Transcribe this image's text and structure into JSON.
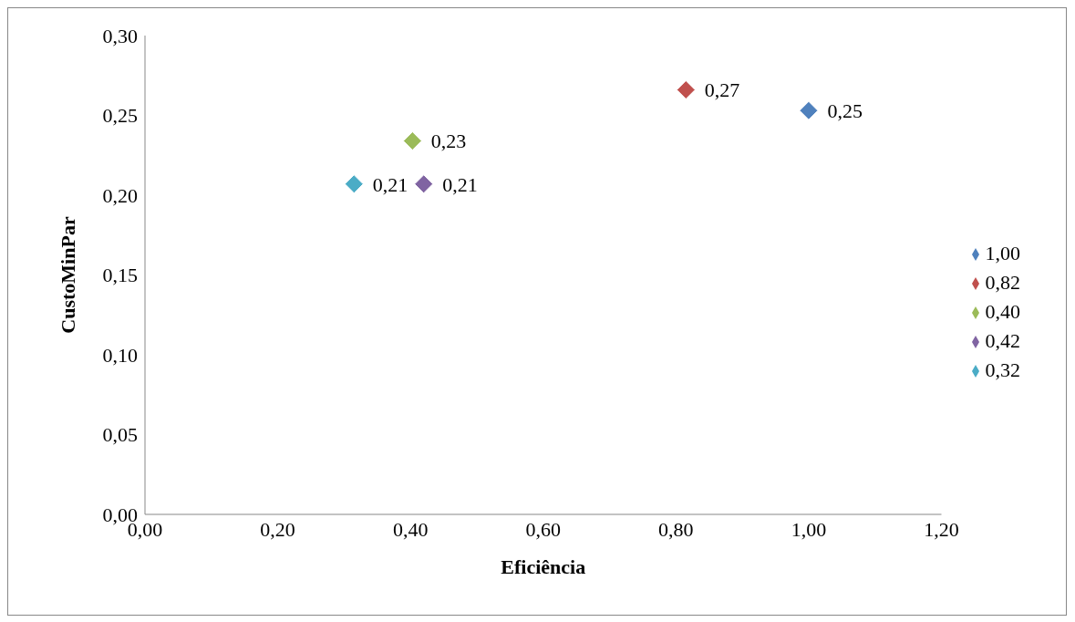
{
  "chart_data": {
    "type": "scatter",
    "xlabel": "Eficiência",
    "ylabel": "CustoMinPar",
    "marker": "diamond",
    "legend": "right",
    "grid": false,
    "xlim": [
      0,
      1.2
    ],
    "xticks": [
      {
        "value": 0,
        "label": "0,00"
      },
      {
        "value": 0.2,
        "label": "0,20"
      },
      {
        "value": 0.4,
        "label": "0,40"
      },
      {
        "value": 0.6,
        "label": "0,60"
      },
      {
        "value": 0.8,
        "label": "0,80"
      },
      {
        "value": 1,
        "label": "1,00"
      },
      {
        "value": 1.2,
        "label": "1,20"
      }
    ],
    "ylim": [
      0,
      0.3
    ],
    "yticks": [
      {
        "value": 0,
        "label": "0,00"
      },
      {
        "value": 0.05,
        "label": "0,05"
      },
      {
        "value": 0.1,
        "label": "0,10"
      },
      {
        "value": 0.15,
        "label": "0,15"
      },
      {
        "value": 0.2,
        "label": "0,20"
      },
      {
        "value": 0.25,
        "label": "0,25"
      },
      {
        "value": 0.3,
        "label": "0,30"
      }
    ],
    "series": [
      {
        "name": "1,00",
        "color": "#4f81bd",
        "x": [
          1.0
        ],
        "values": [
          0.253
        ],
        "value_labels": [
          "0,25"
        ]
      },
      {
        "name": "0,82",
        "color": "#c0504d",
        "x": [
          0.815
        ],
        "values": [
          0.266
        ],
        "value_labels": [
          "0,27"
        ]
      },
      {
        "name": "0,40",
        "color": "#9bbb59",
        "x": [
          0.403
        ],
        "values": [
          0.234
        ],
        "value_labels": [
          "0,23"
        ]
      },
      {
        "name": "0,42",
        "color": "#8064a2",
        "x": [
          0.42
        ],
        "values": [
          0.207
        ],
        "value_labels": [
          "0,21"
        ]
      },
      {
        "name": "0,32",
        "color": "#4bacc6",
        "x": [
          0.315
        ],
        "values": [
          0.207
        ],
        "value_labels": [
          "0,21"
        ]
      }
    ]
  }
}
